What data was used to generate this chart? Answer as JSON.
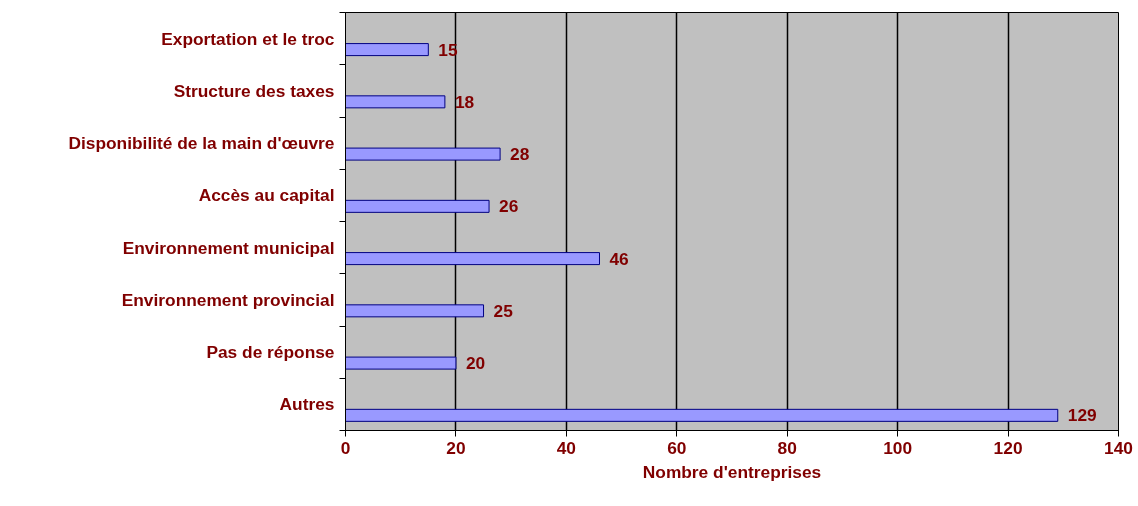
{
  "chart_data": {
    "type": "bar",
    "orientation": "horizontal",
    "xlabel": "Nombre d'entreprises",
    "categories": [
      "Exportation et le troc",
      "Structure des taxes",
      "Disponibilité de la main d'œuvre",
      "Accès au capital",
      "Environnement municipal",
      "Environnement provincial",
      "Pas de réponse",
      "Autres"
    ],
    "values": [
      15,
      18,
      28,
      26,
      46,
      25,
      20,
      129
    ],
    "color": "#9999ff",
    "xlim": [
      0,
      140
    ],
    "xticks": [
      0,
      20,
      40,
      60,
      80,
      100,
      120,
      140
    ],
    "grid": "x",
    "data_labels": true
  }
}
